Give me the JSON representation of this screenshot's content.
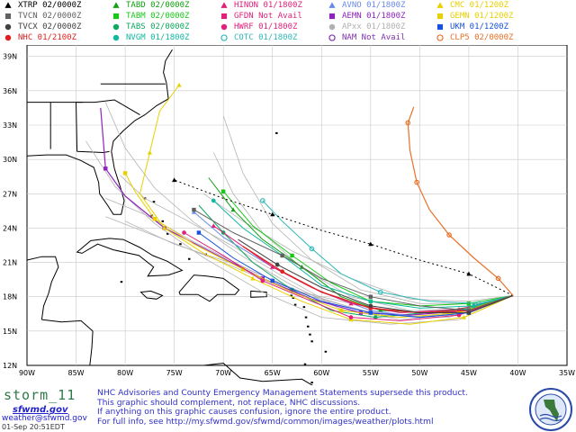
{
  "legend": [
    {
      "label": "XTRP 02/0000Z",
      "color": "#000000",
      "marker": "triangle"
    },
    {
      "label": "TABD 02/0000Z",
      "color": "#10a010",
      "marker": "triangle"
    },
    {
      "label": "HINON 01/1800Z",
      "color": "#e0207a",
      "marker": "triangle"
    },
    {
      "label": "AVNO 01/1800Z",
      "color": "#6a8ae8",
      "marker": "triangle"
    },
    {
      "label": "CMC 01/1200Z",
      "color": "#e8d000",
      "marker": "triangle"
    },
    {
      "label": "TVCN 02/0000Z",
      "color": "#606060",
      "marker": "square"
    },
    {
      "label": "TABM 02/0000Z",
      "color": "#18c818",
      "marker": "square"
    },
    {
      "label": "GFDN Not Avail",
      "color": "#e0207a",
      "marker": "square"
    },
    {
      "label": "AEMN 01/1800Z",
      "color": "#9020c0",
      "marker": "square"
    },
    {
      "label": "GEMN 01/1200Z",
      "color": "#e8d000",
      "marker": "square"
    },
    {
      "label": "TVCX 02/0000Z",
      "color": "#404040",
      "marker": "circle"
    },
    {
      "label": "TABS 02/0000Z",
      "color": "#10a860",
      "marker": "circle"
    },
    {
      "label": "HWRF 01/1800Z",
      "color": "#e0207a",
      "marker": "circle"
    },
    {
      "label": "APxx 01/1800Z",
      "color": "#b0b0b0",
      "marker": "circle"
    },
    {
      "label": "UKM 01/1200Z",
      "color": "#1850e0",
      "marker": "square"
    },
    {
      "label": "NHC 01/2100Z",
      "color": "#e02020",
      "marker": "circle"
    },
    {
      "label": "NVGM 01/1800Z",
      "color": "#10b8a0",
      "marker": "circle"
    },
    {
      "label": "COTC 01/1800Z",
      "color": "#30b8b8",
      "marker": "circle-open"
    },
    {
      "label": "NAM Not Avail",
      "color": "#8030b0",
      "marker": "circle-open"
    },
    {
      "label": "CLP5 02/0000Z",
      "color": "#e87028",
      "marker": "circle-open"
    }
  ],
  "map": {
    "lat_labels": [
      "39N",
      "36N",
      "33N",
      "30N",
      "27N",
      "24N",
      "21N",
      "18N",
      "15N",
      "12N"
    ],
    "lon_labels": [
      "90W",
      "85W",
      "80W",
      "75W",
      "70W",
      "65W",
      "60W",
      "55W",
      "50W",
      "45W",
      "40W",
      "35W"
    ],
    "colors": {
      "land": "#000000",
      "water": "#ffffff",
      "grid": "#c8c8c8",
      "label": "#000000"
    }
  },
  "footer": {
    "storm_name": "storm_11",
    "site": "sfwmd.gov",
    "email": "weather@sfwmd.gov",
    "stamp": "01-Sep 20:51EDT",
    "disclaimer": [
      "NHC Advisories and County Emergency Management Statements supersede this product.",
      "This graphic should complement, not replace, NHC discussions.",
      "If anything on this graphic causes confusion, ignore the entire product.",
      "For full info, see http://my.sfwmd.gov/sfwmd/common/images/weather/plots.html"
    ]
  }
}
